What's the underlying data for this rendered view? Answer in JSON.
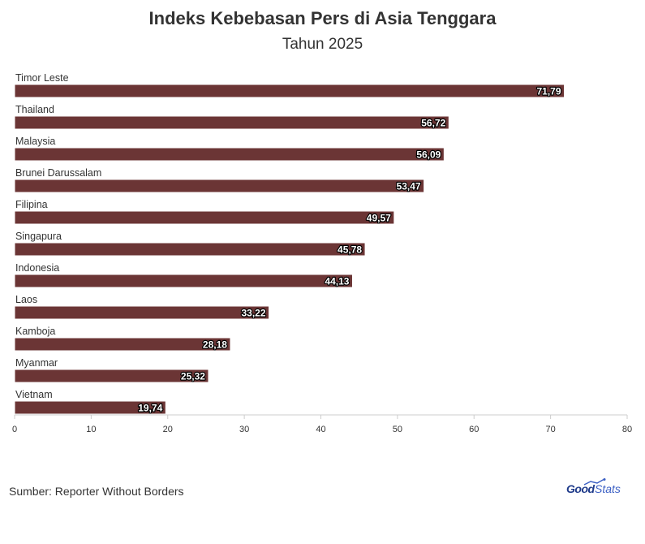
{
  "title": "Indeks Kebebasan Pers di Asia Tenggara",
  "subtitle": "Tahun 2025",
  "source": "Sumber: Reporter Without Borders",
  "logo": {
    "part1": "Good",
    "part2": "Stats"
  },
  "colors": {
    "bar": "#6b3535",
    "bar_border": "#ffffff"
  },
  "chart_data": {
    "type": "bar",
    "orientation": "horizontal",
    "title": "Indeks Kebebasan Pers di Asia Tenggara",
    "subtitle": "Tahun 2025",
    "categories": [
      "Timor Leste",
      "Thailand",
      "Malaysia",
      "Brunei Darussalam",
      "Filipina",
      "Singapura",
      "Indonesia",
      "Laos",
      "Kamboja",
      "Myanmar",
      "Vietnam"
    ],
    "values": [
      71.79,
      56.72,
      56.09,
      53.47,
      49.57,
      45.78,
      44.13,
      33.22,
      28.18,
      25.32,
      19.74
    ],
    "value_labels": [
      "71,79",
      "56,72",
      "56,09",
      "53,47",
      "49,57",
      "45,78",
      "44,13",
      "33,22",
      "28,18",
      "25,32",
      "19,74"
    ],
    "xlim": [
      0,
      80
    ],
    "xticks": [
      0,
      10,
      20,
      30,
      40,
      50,
      60,
      70,
      80
    ],
    "grid": false,
    "legend": "none"
  }
}
